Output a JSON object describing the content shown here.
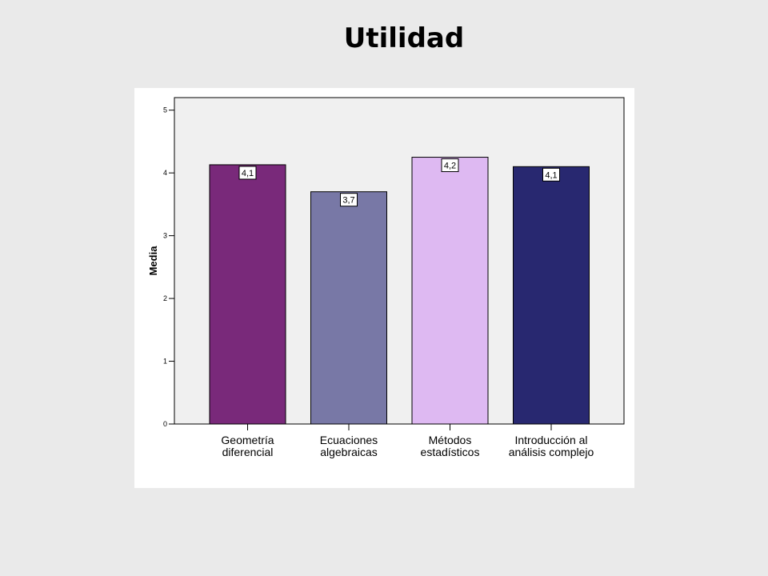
{
  "slide": {
    "title": "Utilidad"
  },
  "colors": {
    "page_background": "#eaeaea",
    "panel_background": "#ffffff",
    "plot_background": "#f0f0f0",
    "bar_colors": [
      "#79297a",
      "#7878a6",
      "#deb9f2",
      "#282870"
    ]
  },
  "chart_data": {
    "type": "bar",
    "title": "",
    "xlabel": "",
    "ylabel": "Media",
    "ylim": [
      0,
      5.2
    ],
    "yticks": [
      "0",
      "1",
      "2",
      "3",
      "4",
      "5"
    ],
    "categories": [
      [
        "Geometría",
        "diferencial"
      ],
      [
        "Ecuaciones",
        "algebraicas"
      ],
      [
        "Métodos",
        "estadísticos"
      ],
      [
        "Introducción al",
        "análisis complejo"
      ]
    ],
    "values": [
      4.13,
      3.7,
      4.25,
      4.1
    ],
    "data_labels": [
      "4,1",
      "3,7",
      "4,2",
      "4,1"
    ],
    "grid": false,
    "legend": "none"
  }
}
